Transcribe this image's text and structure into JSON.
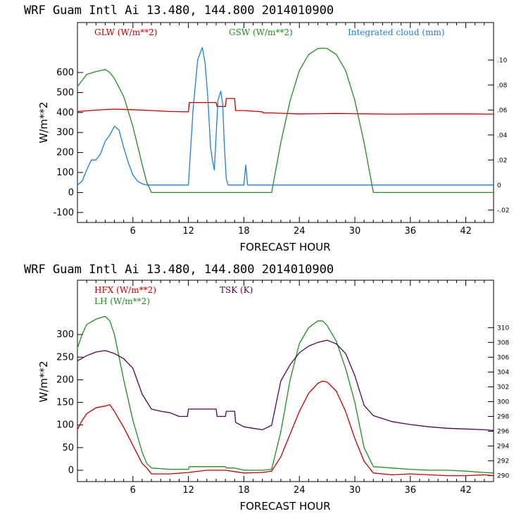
{
  "charts": [
    {
      "title": "WRF   Guam Intl Ai   13.480, 144.800  2014010900",
      "xlabel": "FORECAST HOUR",
      "ylabel": "W/m**2",
      "legend": [
        {
          "label": "GLW (W/m**2)",
          "color": "#c00000"
        },
        {
          "label": "GSW (W/m**2)",
          "color": "#228b22"
        },
        {
          "label": "Integrated cloud (mm)",
          "color": "#1f7fd0"
        }
      ]
    },
    {
      "title": "WRF   Guam Intl Ai   13.480, 144.800  2014010900",
      "xlabel": "FORECAST HOUR",
      "ylabel": "W/m**2",
      "legend": [
        {
          "label": "HFX (W/m**2)",
          "color": "#c00000"
        },
        {
          "label": "LH  (W/m**2)",
          "color": "#228b22"
        },
        {
          "label": "TSK (K)",
          "color": "#4b0850"
        }
      ]
    }
  ],
  "chart_data": [
    {
      "type": "line",
      "xlim": [
        0,
        45
      ],
      "ylim": [
        -150,
        850
      ],
      "y_ticks": [
        -100,
        0,
        100,
        200,
        300,
        400,
        500,
        600
      ],
      "x_ticks": [
        6,
        12,
        18,
        24,
        30,
        36,
        42
      ],
      "y2lim": [
        -0.03,
        0.13
      ],
      "y2_ticks": [
        -0.02,
        0,
        0.02,
        0.04,
        0.06,
        0.08,
        0.1
      ],
      "y2_tick_labels": [
        "-.02",
        "0",
        ".02",
        ".04",
        ".06",
        ".08",
        ".10"
      ],
      "series": [
        {
          "name": "GLW (W/m**2)",
          "axis": "left",
          "color": "#c00000",
          "x": [
            0,
            2,
            4,
            6,
            8,
            10,
            12,
            12.1,
            15,
            15.1,
            16,
            16.1,
            17,
            17.1,
            18,
            20,
            20.1,
            21,
            22,
            24,
            26,
            28,
            30,
            34,
            38,
            42,
            45
          ],
          "y": [
            405,
            412,
            417,
            414,
            410,
            405,
            403,
            450,
            450,
            430,
            430,
            470,
            470,
            410,
            410,
            403,
            398,
            398,
            396,
            393,
            394,
            395,
            394,
            392,
            393,
            393,
            392
          ]
        },
        {
          "name": "GSW (W/m**2)",
          "axis": "left",
          "color": "#228b22",
          "x": [
            0,
            0.5,
            1,
            2,
            3,
            3.5,
            4,
            5,
            6,
            7,
            7.5,
            8,
            21,
            22,
            23,
            24,
            25,
            26,
            26.5,
            27,
            28,
            29,
            30,
            31,
            32,
            45
          ],
          "y": [
            530,
            560,
            590,
            605,
            615,
            600,
            570,
            480,
            330,
            140,
            50,
            0,
            0,
            250,
            460,
            610,
            690,
            720,
            722,
            720,
            690,
            610,
            460,
            250,
            0,
            0
          ]
        },
        {
          "name": "Integrated cloud (mm)",
          "axis": "right",
          "color": "#1f7fd0",
          "x": [
            0,
            0.5,
            1,
            1.5,
            2,
            2.5,
            3,
            3.5,
            4,
            4.5,
            5,
            5.5,
            6,
            6.5,
            7,
            7.5,
            8,
            12,
            12.5,
            13,
            13.5,
            13.8,
            14.1,
            14.4,
            14.6,
            14.8,
            15,
            15.2,
            15.5,
            15.7,
            15.9,
            16.1,
            16.3,
            16.5,
            16.7,
            18,
            18.2,
            18.4,
            19,
            45
          ],
          "y": [
            0,
            0.003,
            0.012,
            0.02,
            0.02,
            0.025,
            0.035,
            0.04,
            0.047,
            0.044,
            0.03,
            0.018,
            0.008,
            0.003,
            0.001,
            0,
            0,
            0,
            0.06,
            0.1,
            0.11,
            0.098,
            0.07,
            0.03,
            0.02,
            0.012,
            0.04,
            0.068,
            0.075,
            0.065,
            0.03,
            0.005,
            0,
            0,
            0,
            0,
            0.016,
            0,
            0,
            0
          ]
        }
      ]
    },
    {
      "type": "line",
      "xlim": [
        0,
        45
      ],
      "ylim": [
        -25,
        420
      ],
      "y_ticks": [
        0,
        50,
        100,
        150,
        200,
        250,
        300
      ],
      "x_ticks": [
        6,
        12,
        18,
        24,
        30,
        36,
        42
      ],
      "y2lim": [
        289.2,
        316.4
      ],
      "y2_ticks": [
        290,
        292,
        294,
        296,
        298,
        300,
        302,
        304,
        306,
        308,
        310
      ],
      "y2_tick_labels": [
        "290",
        "292",
        "294",
        "296",
        "298",
        "300",
        "302",
        "304",
        "306",
        "308",
        "310"
      ],
      "series": [
        {
          "name": "HFX (W/m**2)",
          "axis": "left",
          "color": "#c00000",
          "x": [
            0,
            0.5,
            1,
            2,
            3,
            3.5,
            4,
            5,
            6,
            7,
            7.5,
            8,
            10,
            12,
            14,
            16,
            18,
            20,
            21,
            22,
            23,
            24,
            25,
            26,
            26.5,
            27,
            28,
            29,
            30,
            31,
            32,
            34,
            36,
            38,
            40,
            42,
            44,
            45
          ],
          "y": [
            90,
            110,
            125,
            138,
            142,
            145,
            130,
            95,
            55,
            15,
            5,
            -8,
            -8,
            -5,
            0,
            0,
            -6,
            -5,
            -2,
            30,
            80,
            130,
            170,
            192,
            197,
            195,
            175,
            130,
            70,
            20,
            -6,
            -10,
            -8,
            -10,
            -12,
            -12,
            -10,
            -12
          ]
        },
        {
          "name": "LH  (W/m**2)",
          "axis": "left",
          "color": "#228b22",
          "x": [
            0,
            0.5,
            1,
            2,
            3,
            3.5,
            4,
            5,
            6,
            7,
            7.5,
            8,
            10,
            12,
            12.1,
            16,
            16.1,
            17,
            18,
            20,
            21,
            22,
            23,
            24,
            25,
            26,
            26.5,
            27,
            28,
            29,
            30,
            31,
            32,
            34,
            36,
            38,
            40,
            42,
            44,
            45
          ],
          "y": [
            270,
            300,
            322,
            334,
            340,
            330,
            300,
            200,
            110,
            40,
            15,
            5,
            2,
            2,
            8,
            8,
            5,
            5,
            0,
            0,
            2,
            85,
            200,
            280,
            315,
            330,
            330,
            320,
            285,
            225,
            150,
            50,
            8,
            5,
            2,
            0,
            0,
            -2,
            -5,
            -6
          ]
        },
        {
          "name": "TSK (K)",
          "axis": "right",
          "color": "#4b0850",
          "x": [
            0,
            1,
            2,
            3,
            4,
            5,
            6,
            7,
            8,
            9,
            10,
            11,
            11.9,
            12,
            15,
            15.1,
            16,
            16.1,
            17,
            17.1,
            18,
            19,
            20,
            21,
            22,
            23,
            24,
            25,
            26,
            27,
            28,
            29,
            30,
            31,
            32,
            34,
            36,
            38,
            40,
            42,
            44,
            45
          ],
          "y": [
            305.5,
            306.2,
            306.7,
            306.9,
            306.5,
            305.8,
            304.5,
            301,
            299,
            298.7,
            298.5,
            298,
            298,
            299,
            299,
            298,
            298,
            298.7,
            298.7,
            297.2,
            296.6,
            296.4,
            296.2,
            296.8,
            302.8,
            305,
            306.6,
            307.5,
            308,
            308.3,
            307.8,
            306.5,
            303.5,
            299.5,
            298.1,
            297.3,
            296.9,
            296.6,
            296.4,
            296.3,
            296.2,
            296.1
          ]
        }
      ]
    }
  ]
}
